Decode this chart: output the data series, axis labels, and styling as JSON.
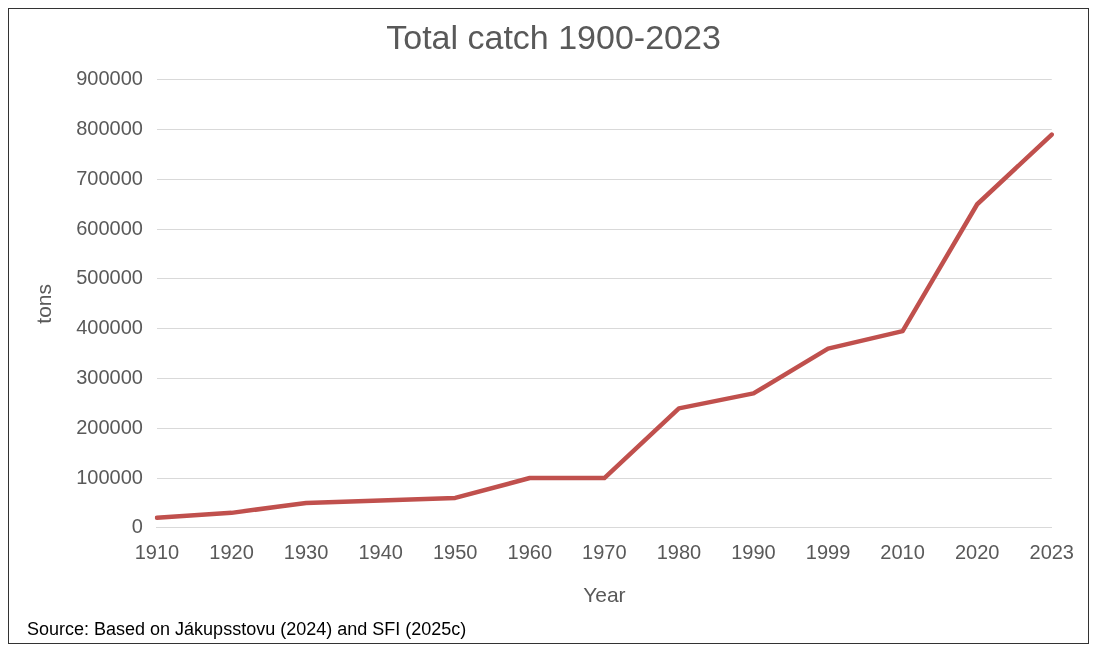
{
  "chart_data": {
    "type": "line",
    "title": "Total catch 1900-2023",
    "xlabel": "Year",
    "ylabel": "tons",
    "categories": [
      "1910",
      "1920",
      "1930",
      "1940",
      "1950",
      "1960",
      "1970",
      "1980",
      "1990",
      "1999",
      "2010",
      "2020",
      "2023"
    ],
    "series": [
      {
        "color": "#c0504d",
        "values": [
          20000,
          30000,
          50000,
          55000,
          60000,
          100000,
          100000,
          240000,
          270000,
          360000,
          395000,
          650000,
          790000
        ]
      }
    ],
    "ylim": [
      0,
      900000
    ],
    "yticks": [
      0,
      100000,
      200000,
      300000,
      400000,
      500000,
      600000,
      700000,
      800000,
      900000
    ],
    "grid": "y",
    "legend": false,
    "marker": "none",
    "line_style": "solid",
    "annotations": [
      "Source: Based on Jákupsstovu (2024) and SFI (2025c)"
    ]
  }
}
